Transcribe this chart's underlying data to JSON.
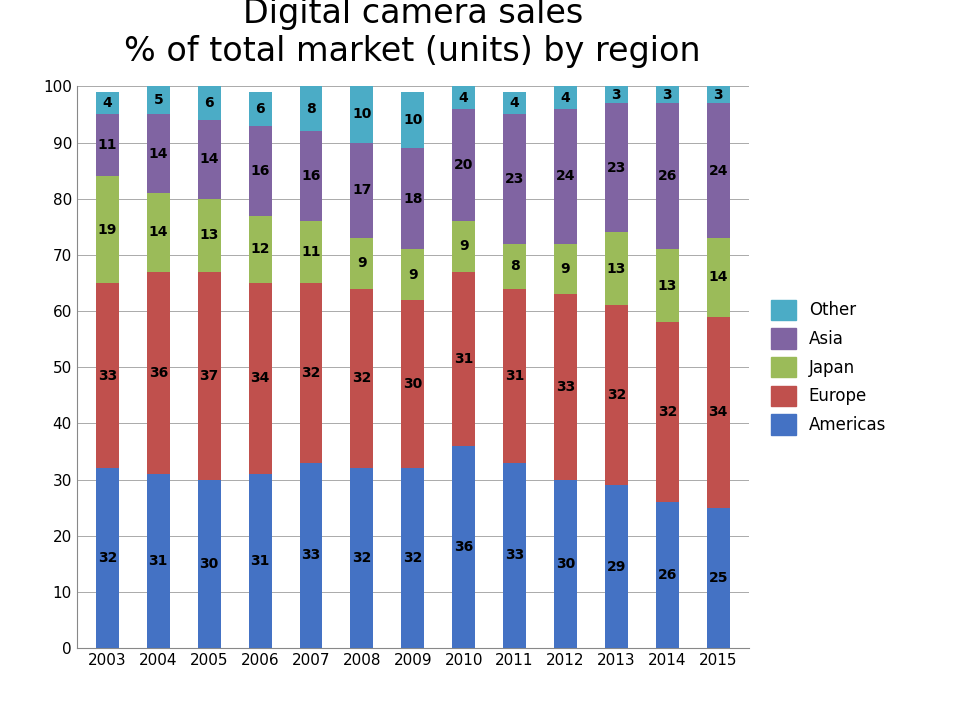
{
  "title": "Digital camera sales\n% of total market (units) by region",
  "years": [
    2003,
    2004,
    2005,
    2006,
    2007,
    2008,
    2009,
    2010,
    2011,
    2012,
    2013,
    2014,
    2015
  ],
  "series": {
    "Americas": [
      32,
      31,
      30,
      31,
      33,
      32,
      32,
      36,
      33,
      30,
      29,
      26,
      25
    ],
    "Europe": [
      33,
      36,
      37,
      34,
      32,
      32,
      30,
      31,
      31,
      33,
      32,
      32,
      34
    ],
    "Japan": [
      19,
      14,
      13,
      12,
      11,
      9,
      9,
      9,
      8,
      9,
      13,
      13,
      14
    ],
    "Asia": [
      11,
      14,
      14,
      16,
      16,
      17,
      18,
      20,
      23,
      24,
      23,
      26,
      24
    ],
    "Other": [
      4,
      5,
      6,
      6,
      8,
      10,
      10,
      4,
      4,
      4,
      3,
      3,
      3
    ]
  },
  "colors": {
    "Americas": "#4472C4",
    "Europe": "#C0504D",
    "Japan": "#9BBB59",
    "Asia": "#8064A2",
    "Other": "#4BACC6"
  },
  "ylim": [
    0,
    100
  ],
  "yticks": [
    0,
    10,
    20,
    30,
    40,
    50,
    60,
    70,
    80,
    90,
    100
  ],
  "legend_order": [
    "Other",
    "Asia",
    "Japan",
    "Europe",
    "Americas"
  ],
  "title_fontsize": 24,
  "tick_fontsize": 11,
  "label_fontsize": 10,
  "legend_fontsize": 12,
  "bar_width": 0.45
}
